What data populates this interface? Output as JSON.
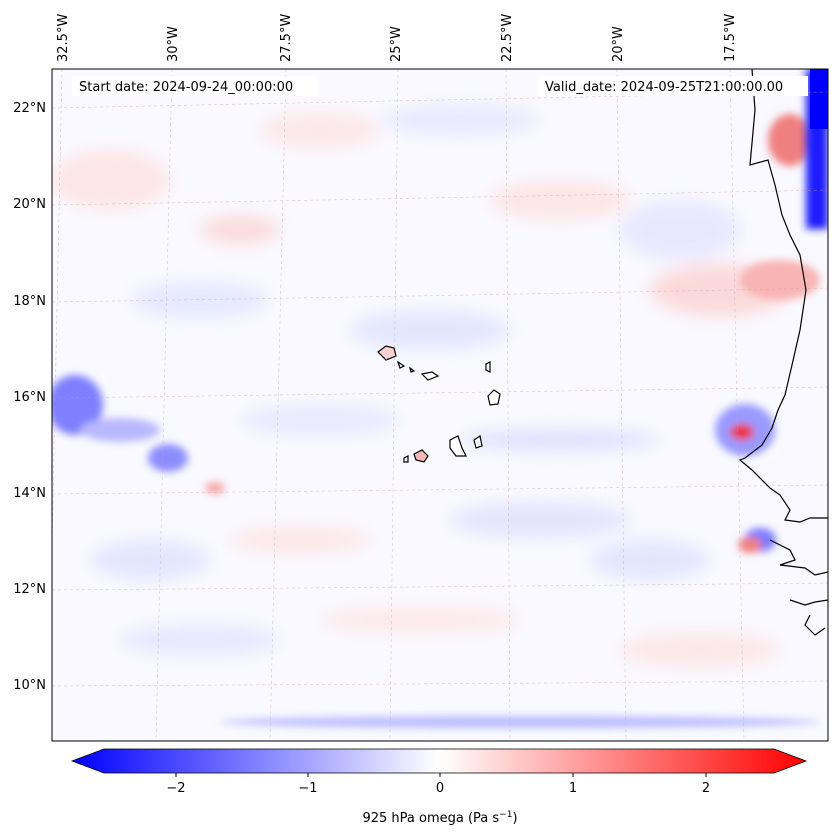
{
  "header": {
    "start_date": "Start date: 2024-09-24_00:00:00",
    "valid_date": "Valid_date: 2024-09-25T21:00:00.00"
  },
  "map": {
    "lon_labels": [
      "32.5°W",
      "30°W",
      "27.5°W",
      "25°W",
      "22.5°W",
      "20°W",
      "17.5°W"
    ],
    "lat_labels": [
      "22°N",
      "20°N",
      "18°N",
      "16°N",
      "14°N",
      "12°N",
      "10°N"
    ],
    "field": "925 hPa omega",
    "colors": {
      "negative": "#0000ff",
      "zero": "#ffffff",
      "positive": "#ff0000",
      "coast": "#000000"
    }
  },
  "colorbar": {
    "range": [
      -2.7,
      2.7
    ],
    "ticks": [
      "−2",
      "−1",
      "0",
      "1",
      "2"
    ],
    "label": "925 hPa omega (Pa s",
    "label_sup": "−1",
    "label_end": ")"
  }
}
